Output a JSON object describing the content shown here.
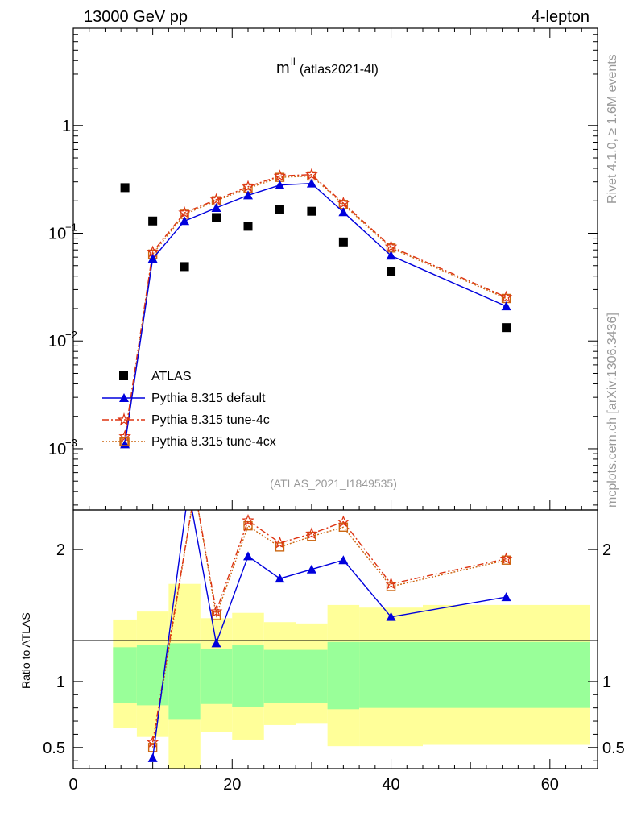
{
  "header": {
    "energy_label": "13000 GeV pp",
    "channel_label": "4-lepton",
    "title_main": "m",
    "title_sup": "ll",
    "title_sub": "(atlas2021-4l)",
    "analysis_id": "(ATLAS_2021_I1849535)",
    "side_rivet": "Rivet 4.1.0, ≥ 1.6M events",
    "side_mcplots": "mcplots.cern.ch [arXiv:1306.3436]"
  },
  "colors": {
    "atlas": "#000000",
    "default": "#0000dd",
    "tune4c": "#dd3311",
    "tune4cx": "#cc6611",
    "band_green": "#99ff99",
    "band_yellow": "#ffff99"
  },
  "chart_data": [
    {
      "type": "line",
      "scale": "log",
      "xlim": [
        0,
        66
      ],
      "ylim": [
        0.00027,
        8
      ],
      "yticks": [
        {
          "value": 1,
          "mantissa": "1",
          "exp": ""
        },
        {
          "value": 0.1,
          "mantissa": "10",
          "exp": "−1"
        },
        {
          "value": 0.01,
          "mantissa": "10",
          "exp": "−2"
        },
        {
          "value": 0.001,
          "mantissa": "10",
          "exp": "−3"
        }
      ],
      "series": [
        {
          "name": "ATLAS",
          "key": "atlas",
          "marker": "square",
          "x": [
            6.5,
            10,
            14,
            18,
            22,
            26,
            30,
            34,
            40,
            54.5
          ],
          "y": [
            0.265,
            0.13,
            0.049,
            0.14,
            0.116,
            0.165,
            0.16,
            0.083,
            0.044,
            0.0133
          ]
        },
        {
          "name": "Pythia 8.315 default",
          "key": "default",
          "marker": "triangle",
          "dash": "",
          "x": [
            6.5,
            10,
            14,
            18,
            22,
            26,
            30,
            34,
            40,
            54.5
          ],
          "y": [
            0.0011,
            0.058,
            0.13,
            0.172,
            0.225,
            0.28,
            0.29,
            0.157,
            0.062,
            0.021
          ]
        },
        {
          "name": "Pythia 8.315 tune-4c",
          "key": "tune4c",
          "marker": "star",
          "dash": "8,3,2,3",
          "x": [
            6.5,
            10,
            14,
            18,
            22,
            26,
            30,
            34,
            40,
            54.5
          ],
          "y": [
            0.0013,
            0.067,
            0.155,
            0.205,
            0.27,
            0.34,
            0.35,
            0.19,
            0.075,
            0.0255
          ]
        },
        {
          "name": "Pythia 8.315 tune-4cx",
          "key": "tune4cx",
          "marker": "opensquare",
          "dash": "2,2",
          "x": [
            6.5,
            10,
            14,
            18,
            22,
            26,
            30,
            34,
            40,
            54.5
          ],
          "y": [
            0.00115,
            0.064,
            0.15,
            0.2,
            0.262,
            0.33,
            0.34,
            0.185,
            0.073,
            0.0248
          ]
        }
      ]
    },
    {
      "type": "line",
      "ylabel": "Ratio to ATLAS",
      "xlim": [
        0,
        66
      ],
      "ylim": [
        0.34,
        2.3
      ],
      "xticks": [
        0,
        20,
        40,
        60
      ],
      "yticks": [
        {
          "value": 0.5,
          "label": "0.5"
        },
        {
          "value": 1,
          "label": "1"
        },
        {
          "value": 2,
          "label": "2"
        }
      ],
      "bands": [
        {
          "x0": 5,
          "x1": 8,
          "green": [
            0.84,
            1.26
          ],
          "yellow": [
            0.65,
            1.47
          ]
        },
        {
          "x0": 8,
          "x1": 12,
          "green": [
            0.82,
            1.28
          ],
          "yellow": [
            0.58,
            1.53
          ]
        },
        {
          "x0": 12,
          "x1": 16,
          "green": [
            0.71,
            1.29
          ],
          "yellow": [
            0.34,
            1.74
          ]
        },
        {
          "x0": 16,
          "x1": 20,
          "green": [
            0.83,
            1.25
          ],
          "yellow": [
            0.62,
            1.48
          ]
        },
        {
          "x0": 20,
          "x1": 24,
          "green": [
            0.81,
            1.28
          ],
          "yellow": [
            0.56,
            1.52
          ]
        },
        {
          "x0": 24,
          "x1": 28,
          "green": [
            0.84,
            1.24
          ],
          "yellow": [
            0.67,
            1.45
          ]
        },
        {
          "x0": 28,
          "x1": 32,
          "green": [
            0.84,
            1.24
          ],
          "yellow": [
            0.68,
            1.44
          ]
        },
        {
          "x0": 32,
          "x1": 36,
          "green": [
            0.79,
            1.3
          ],
          "yellow": [
            0.51,
            1.58
          ]
        },
        {
          "x0": 36,
          "x1": 44,
          "green": [
            0.8,
            1.3
          ],
          "yellow": [
            0.51,
            1.56
          ]
        },
        {
          "x0": 44,
          "x1": 65,
          "green": [
            0.8,
            1.3
          ],
          "yellow": [
            0.52,
            1.58
          ]
        }
      ],
      "series": [
        {
          "name": "Pythia 8.315 default",
          "key": "default",
          "marker": "triangle",
          "dash": "",
          "x": [
            10,
            14.5,
            18,
            22,
            26,
            30,
            34,
            40,
            54.5
          ],
          "y": [
            0.42,
            2.45,
            1.29,
            1.95,
            1.78,
            1.85,
            1.92,
            1.49,
            1.64
          ]
        },
        {
          "name": "Pythia 8.315 tune-4c",
          "key": "tune4c",
          "marker": "star",
          "dash": "8,3,2,3",
          "x": [
            10,
            15.3,
            18,
            22,
            26,
            30,
            34,
            40,
            54.5
          ],
          "y": [
            0.54,
            2.45,
            1.53,
            2.22,
            2.05,
            2.12,
            2.21,
            1.74,
            1.93
          ]
        },
        {
          "name": "Pythia 8.315 tune-4cx",
          "key": "tune4cx",
          "marker": "opensquare",
          "dash": "2,2",
          "x": [
            10,
            15.3,
            18,
            22,
            26,
            30,
            34,
            40,
            54.5
          ],
          "y": [
            0.5,
            2.45,
            1.5,
            2.18,
            2.02,
            2.1,
            2.17,
            1.72,
            1.92
          ]
        }
      ]
    }
  ]
}
